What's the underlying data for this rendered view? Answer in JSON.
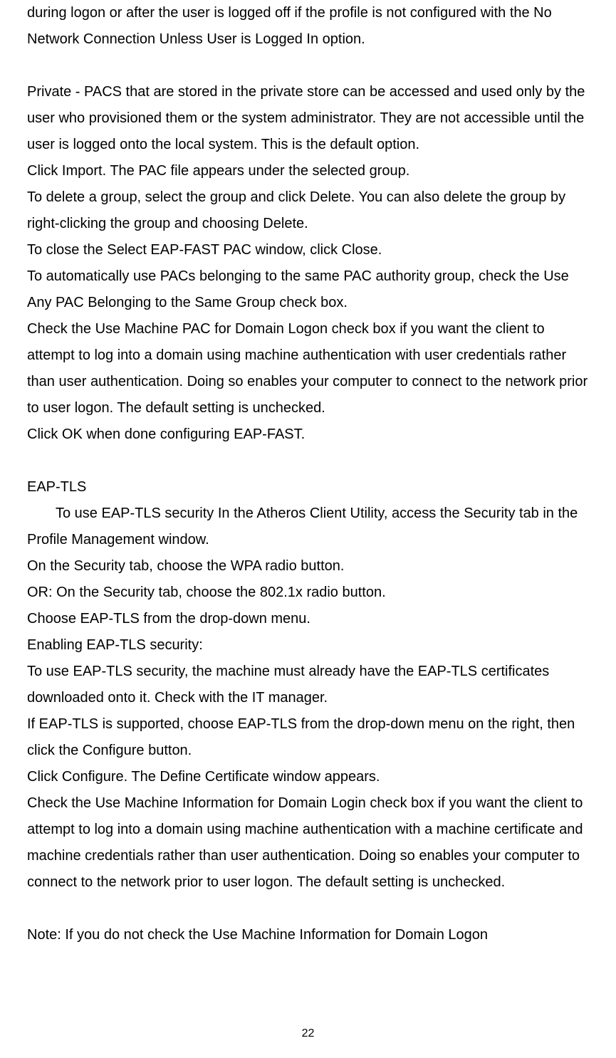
{
  "para1": "during logon or after the user is logged off if the profile is not configured with the No Network Connection Unless User is Logged In option.",
  "para2": "Private - PACS that are stored in the private store can be accessed and used only by the user who provisioned them or the system administrator. They are not accessible until the user is logged onto the local system. This is the default option.",
  "para3": "Click Import. The PAC file appears under the selected group.",
  "para4": "To delete a group, select the group and click Delete. You can also delete the group by right-clicking the group and choosing Delete.",
  "para5": "To close the Select EAP-FAST PAC window, click Close.",
  "para6": "To automatically use PACs belonging to the same PAC authority group, check the Use Any PAC Belonging to the Same Group check box.",
  "para7": "Check the Use Machine PAC for Domain Logon check box if you want the client to attempt to log into a domain using machine authentication with user credentials rather than user authentication. Doing so enables your computer to connect to the network prior to user logon. The default setting is unchecked.",
  "para8": "Click OK when done configuring EAP-FAST.",
  "heading1": "EAP-TLS",
  "para9": "To use EAP-TLS security In the Atheros Client Utility, access the Security tab in the Profile Management window.",
  "para10": "On the Security tab, choose the WPA radio button.",
  "para11": "OR: On the Security tab, choose the 802.1x radio button.",
  "para12": "Choose EAP-TLS from the drop-down menu.",
  "para13": "Enabling EAP-TLS security:",
  "para14": "To use EAP-TLS security, the machine must already have the EAP-TLS certificates downloaded onto it. Check with the IT manager.",
  "para15": "If EAP-TLS is supported, choose EAP-TLS from the drop-down menu on the right, then click the Configure button.",
  "para16": "Click Configure. The Define Certificate window appears.",
  "para17": "Check the Use Machine Information for Domain Login check box if you want the client to attempt to log into a domain using machine authentication with a machine certificate and machine credentials rather than user authentication. Doing so enables your computer to connect to the network prior to user logon. The default setting is unchecked.",
  "para18": "Note: If you do not check the Use Machine Information for Domain Logon",
  "pageNumber": "22"
}
